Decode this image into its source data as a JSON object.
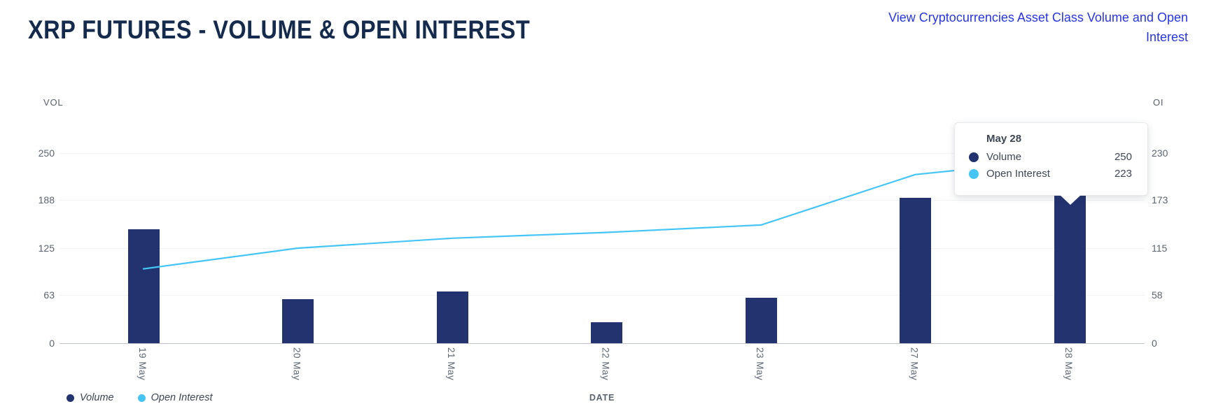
{
  "header": {
    "title": "XRP FUTURES - VOLUME & OPEN INTEREST",
    "link_text": "View Cryptocurrencies Asset Class Volume and Open Interest"
  },
  "chart_data": {
    "type": "bar+line",
    "title": "XRP FUTURES - VOLUME & OPEN INTEREST",
    "categories": [
      "19 May",
      "20 May",
      "21 May",
      "22 May",
      "23 May",
      "27 May",
      "28 May"
    ],
    "series": [
      {
        "name": "Volume",
        "type": "bar",
        "axis": "left",
        "color": "#22336f",
        "values": [
          150,
          58,
          68,
          28,
          60,
          191,
          250
        ]
      },
      {
        "name": "Open Interest",
        "type": "line",
        "axis": "right",
        "color": "#45c5f5",
        "values": [
          90,
          115,
          127,
          134,
          143,
          204,
          223
        ]
      }
    ],
    "left_axis": {
      "label": "VOL",
      "ticks": [
        0,
        63,
        125,
        188,
        250
      ],
      "max": 250
    },
    "right_axis": {
      "label": "OI",
      "ticks": [
        0,
        58,
        115,
        173,
        230
      ],
      "max": 230
    },
    "x_axis_label": "DATE",
    "grid": true,
    "legend_position": "bottom-left"
  },
  "tooltip": {
    "title": "May 28",
    "rows": [
      {
        "label": "Volume",
        "value": "250",
        "color": "#22336f"
      },
      {
        "label": "Open Interest",
        "value": "223",
        "color": "#45c5f5"
      }
    ]
  },
  "legend": {
    "items": [
      {
        "label": "Volume",
        "color": "#22336f"
      },
      {
        "label": "Open Interest",
        "color": "#45c5f5"
      }
    ]
  },
  "colors": {
    "title": "#142b4d",
    "link": "#2735e2",
    "bar": "#22336f",
    "line": "#45c5f5",
    "axis_text": "#5a6470"
  }
}
